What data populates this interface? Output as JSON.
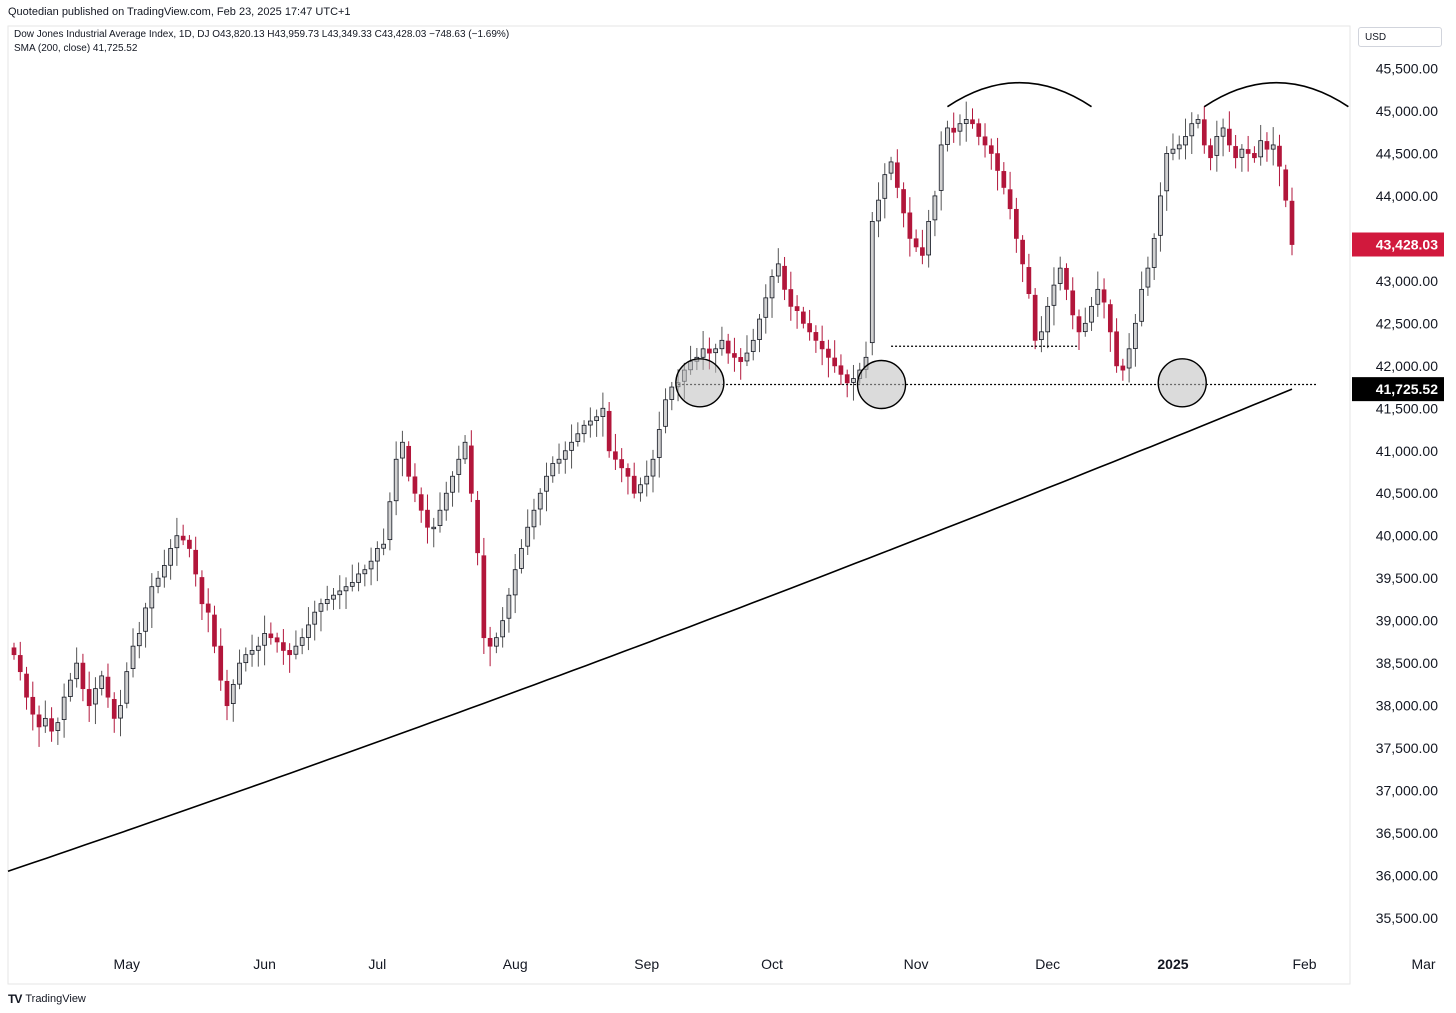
{
  "header": {
    "publisher_note": "Quotedian published on TradingView.com, Feb 23, 2025 17:47 UTC+1",
    "legend_main": "Dow Jones Industrial Average Index, 1D, DJ  O43,820.13  H43,959.73  L43,349.33  C43,428.03  −748.63 (−1.69%)",
    "legend_sma": "SMA (200, close)  41,725.52",
    "currency": "USD"
  },
  "footer": {
    "logo_text": "TV",
    "brand": "TradingView"
  },
  "colors": {
    "up_fill": "#d1d1d1",
    "down_fill": "#b2163b",
    "outline": "#131722",
    "sma": "#000000",
    "last_tag": "#d1193d",
    "sma_tag": "#000000"
  },
  "chart_data": {
    "type": "candlestick",
    "title": "Dow Jones Industrial Average Index, 1D, DJ",
    "ylim": [
      35100,
      46000
    ],
    "y_ticks": [
      "35,500.00",
      "36,000.00",
      "36,500.00",
      "37,000.00",
      "37,500.00",
      "38,000.00",
      "38,500.00",
      "39,000.00",
      "39,500.00",
      "40,000.00",
      "40,500.00",
      "41,000.00",
      "41,500.00",
      "42,000.00",
      "42,500.00",
      "43,000.00",
      "43,500.00",
      "44,000.00",
      "44,500.00",
      "45,000.00",
      "45,500.00"
    ],
    "x_labels": [
      {
        "label": "May",
        "day": 18,
        "bold": false
      },
      {
        "label": "Jun",
        "day": 40,
        "bold": false
      },
      {
        "label": "Jul",
        "day": 58,
        "bold": false
      },
      {
        "label": "Aug",
        "day": 80,
        "bold": false
      },
      {
        "label": "Sep",
        "day": 101,
        "bold": false
      },
      {
        "label": "Oct",
        "day": 121,
        "bold": false
      },
      {
        "label": "Nov",
        "day": 144,
        "bold": false
      },
      {
        "label": "Dec",
        "day": 165,
        "bold": false
      },
      {
        "label": "2025",
        "day": 185,
        "bold": true
      },
      {
        "label": "Feb",
        "day": 206,
        "bold": false
      },
      {
        "label": "Mar",
        "day": 225,
        "bold": false
      }
    ],
    "last_price_label": "43,428.03",
    "last_price": 43428.03,
    "sma_label": "41,725.52",
    "sma_value": 41725.52,
    "closes": [
      38600,
      38400,
      38100,
      37900,
      37750,
      37850,
      37700,
      37800,
      38100,
      38300,
      38500,
      38200,
      38000,
      38200,
      38350,
      38100,
      37850,
      38000,
      38400,
      38700,
      38850,
      39150,
      39400,
      39500,
      39650,
      39850,
      40000,
      39950,
      39850,
      39550,
      39200,
      39100,
      38700,
      38300,
      38000,
      38250,
      38500,
      38600,
      38650,
      38700,
      38850,
      38800,
      38750,
      38650,
      38600,
      38700,
      38800,
      38950,
      39100,
      39200,
      39250,
      39300,
      39350,
      39400,
      39450,
      39550,
      39600,
      39700,
      39850,
      39900,
      40400,
      40900,
      41100,
      40700,
      40500,
      40300,
      40100,
      40100,
      40300,
      40500,
      40700,
      40900,
      41100,
      40500,
      39800,
      38800,
      38700,
      38800,
      39000,
      39300,
      39600,
      39850,
      40100,
      40300,
      40500,
      40700,
      40850,
      40900,
      41000,
      41100,
      41200,
      41300,
      41350,
      41400,
      41500,
      41000,
      40900,
      40800,
      40700,
      40500,
      40600,
      40700,
      40900,
      41250,
      41600,
      41750,
      41800,
      41950,
      42050,
      42100,
      42200,
      42150,
      42200,
      42300,
      42150,
      42100,
      42050,
      42150,
      42300,
      42550,
      42800,
      43050,
      43200,
      42900,
      42700,
      42650,
      42500,
      42400,
      42300,
      42200,
      42100,
      42000,
      41900,
      41800,
      41850,
      41950,
      42100,
      43700,
      43950,
      44250,
      44400,
      44100,
      43800,
      43500,
      43400,
      43300,
      43700,
      44000,
      44600,
      44800,
      44750,
      44850,
      44900,
      44850,
      44700,
      44600,
      44500,
      44300,
      44100,
      43850,
      43500,
      43200,
      42850,
      42300,
      42400,
      42700,
      42950,
      43150,
      42900,
      42600,
      42400,
      42500,
      42700,
      42900,
      42750,
      42400,
      42000,
      41950,
      42200,
      42500,
      42900,
      43150,
      43500,
      44000,
      44500,
      44550,
      44600,
      44700,
      44850,
      44900,
      44600,
      44450,
      44700,
      44800,
      44600,
      44450,
      44550,
      44500,
      44450,
      44650,
      44550,
      44600,
      44350,
      43950,
      43428
    ]
  }
}
